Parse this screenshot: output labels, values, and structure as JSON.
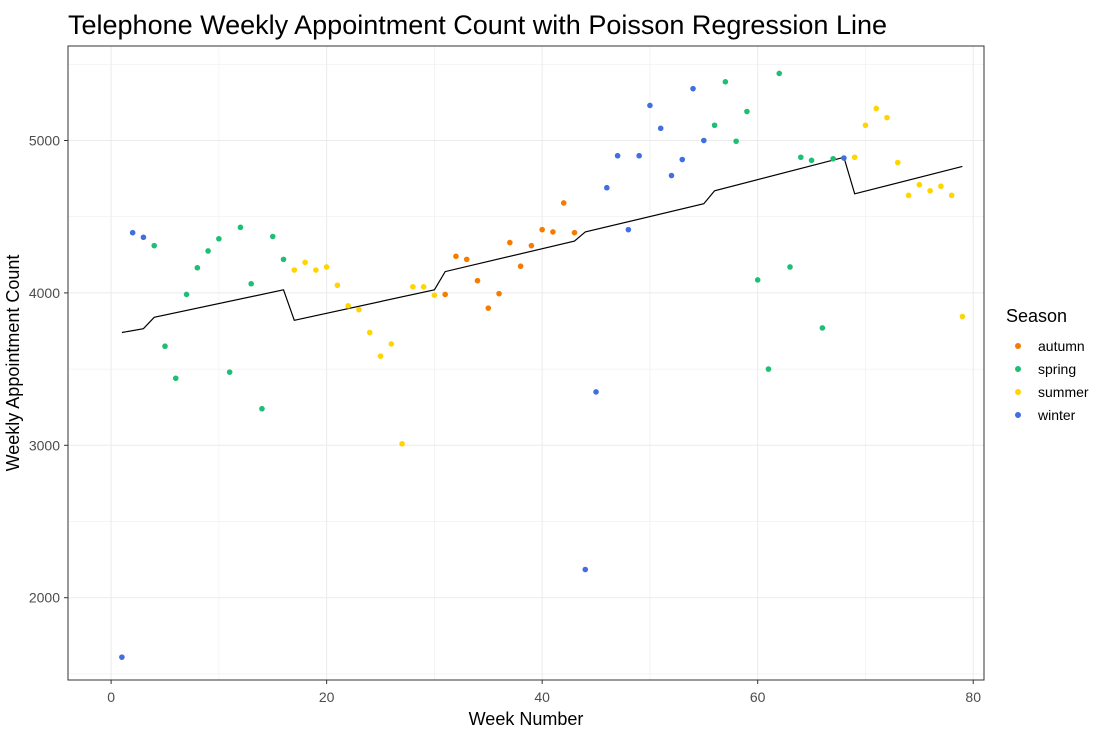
{
  "chart_data": {
    "type": "scatter",
    "title": "Telephone Weekly Appointment Count with Poisson Regression Line",
    "xlabel": "Week Number",
    "ylabel": "Weekly Appointment Count",
    "xlim": [
      -4,
      81
    ],
    "ylim": [
      1460,
      5620
    ],
    "x_ticks": [
      0,
      20,
      40,
      60,
      80
    ],
    "y_ticks": [
      2000,
      3000,
      4000,
      5000
    ],
    "grid": true,
    "legend": {
      "title": "Season",
      "placement": "right",
      "entries": [
        "autumn",
        "spring",
        "summer",
        "winter"
      ]
    },
    "colors": {
      "autumn": "#f57c00",
      "spring": "#1dbf73",
      "summer": "#ffd400",
      "winter": "#3f6fe0",
      "regression": "#000000"
    },
    "series": [
      {
        "name": "autumn",
        "points": [
          [
            31,
            3990
          ],
          [
            32,
            4240
          ],
          [
            33,
            4220
          ],
          [
            34,
            4080
          ],
          [
            35,
            3900
          ],
          [
            36,
            3995
          ],
          [
            37,
            4330
          ],
          [
            38,
            4175
          ],
          [
            39,
            4310
          ],
          [
            40,
            4415
          ],
          [
            41,
            4400
          ],
          [
            42,
            4590
          ],
          [
            43,
            4395
          ]
        ]
      },
      {
        "name": "spring",
        "points": [
          [
            4,
            4310
          ],
          [
            5,
            3650
          ],
          [
            6,
            3440
          ],
          [
            7,
            3990
          ],
          [
            8,
            4165
          ],
          [
            9,
            4275
          ],
          [
            10,
            4355
          ],
          [
            11,
            3480
          ],
          [
            12,
            4430
          ],
          [
            13,
            4060
          ],
          [
            14,
            3240
          ],
          [
            15,
            4370
          ],
          [
            16,
            4220
          ],
          [
            56,
            5100
          ],
          [
            57,
            5385
          ],
          [
            58,
            4995
          ],
          [
            59,
            5190
          ],
          [
            60,
            4085
          ],
          [
            61,
            3500
          ],
          [
            62,
            5440
          ],
          [
            63,
            4170
          ],
          [
            64,
            4890
          ],
          [
            65,
            4870
          ],
          [
            66,
            3770
          ],
          [
            67,
            4880
          ]
        ]
      },
      {
        "name": "summer",
        "points": [
          [
            17,
            4150
          ],
          [
            18,
            4200
          ],
          [
            19,
            4150
          ],
          [
            20,
            4170
          ],
          [
            21,
            4050
          ],
          [
            22,
            3915
          ],
          [
            23,
            3890
          ],
          [
            24,
            3740
          ],
          [
            25,
            3585
          ],
          [
            26,
            3665
          ],
          [
            27,
            3010
          ],
          [
            28,
            4040
          ],
          [
            29,
            4040
          ],
          [
            30,
            3985
          ],
          [
            69,
            4890
          ],
          [
            70,
            5100
          ],
          [
            71,
            5210
          ],
          [
            72,
            5150
          ],
          [
            73,
            4855
          ],
          [
            74,
            4640
          ],
          [
            75,
            4710
          ],
          [
            76,
            4670
          ],
          [
            77,
            4700
          ],
          [
            78,
            4640
          ],
          [
            79,
            3845
          ]
        ]
      },
      {
        "name": "winter",
        "points": [
          [
            1,
            1610
          ],
          [
            2,
            4395
          ],
          [
            3,
            4365
          ],
          [
            44,
            2185
          ],
          [
            45,
            3350
          ],
          [
            46,
            4690
          ],
          [
            47,
            4900
          ],
          [
            48,
            4415
          ],
          [
            49,
            4900
          ],
          [
            50,
            5230
          ],
          [
            51,
            5080
          ],
          [
            52,
            4770
          ],
          [
            53,
            4875
          ],
          [
            54,
            5340
          ],
          [
            55,
            5000
          ],
          [
            68,
            4885
          ]
        ]
      }
    ],
    "regression_line": [
      [
        1,
        3740
      ],
      [
        3,
        3765
      ],
      [
        4,
        3840
      ],
      [
        16,
        4020
      ],
      [
        17,
        3820
      ],
      [
        30,
        4020
      ],
      [
        31,
        4140
      ],
      [
        43,
        4340
      ],
      [
        44,
        4400
      ],
      [
        55,
        4585
      ],
      [
        56,
        4670
      ],
      [
        68,
        4890
      ],
      [
        69,
        4650
      ],
      [
        79,
        4830
      ]
    ]
  }
}
